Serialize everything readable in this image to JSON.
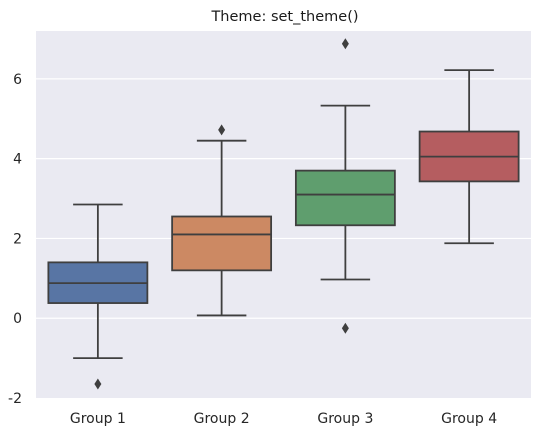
{
  "chart_data": {
    "type": "box",
    "title": "Theme: set_theme()",
    "xlabel": "",
    "ylabel": "",
    "ylim": [
      -2.0,
      7.2
    ],
    "yticks": [
      -2,
      0,
      2,
      4,
      6
    ],
    "grid": true,
    "background": "#EAEAF2",
    "grid_color": "#FFFFFF",
    "line_color": "#3F3F3F",
    "categories": [
      "Group 1",
      "Group 2",
      "Group 3",
      "Group 4"
    ],
    "series": [
      {
        "name": "Group 1",
        "color": "#5875A4",
        "whisker_low": -1.0,
        "q1": 0.38,
        "median": 0.88,
        "q3": 1.4,
        "whisker_high": 2.85,
        "outliers": [
          -1.65
        ]
      },
      {
        "name": "Group 2",
        "color": "#CC8963",
        "whisker_low": 0.07,
        "q1": 1.2,
        "median": 2.1,
        "q3": 2.55,
        "whisker_high": 4.45,
        "outliers": [
          4.72
        ]
      },
      {
        "name": "Group 3",
        "color": "#5F9E6E",
        "whisker_low": 0.97,
        "q1": 2.33,
        "median": 3.1,
        "q3": 3.7,
        "whisker_high": 5.33,
        "outliers": [
          6.88,
          -0.25
        ]
      },
      {
        "name": "Group 4",
        "color": "#B55D60",
        "whisker_low": 1.88,
        "q1": 3.43,
        "median": 4.05,
        "q3": 4.68,
        "whisker_high": 6.22,
        "outliers": []
      }
    ]
  }
}
